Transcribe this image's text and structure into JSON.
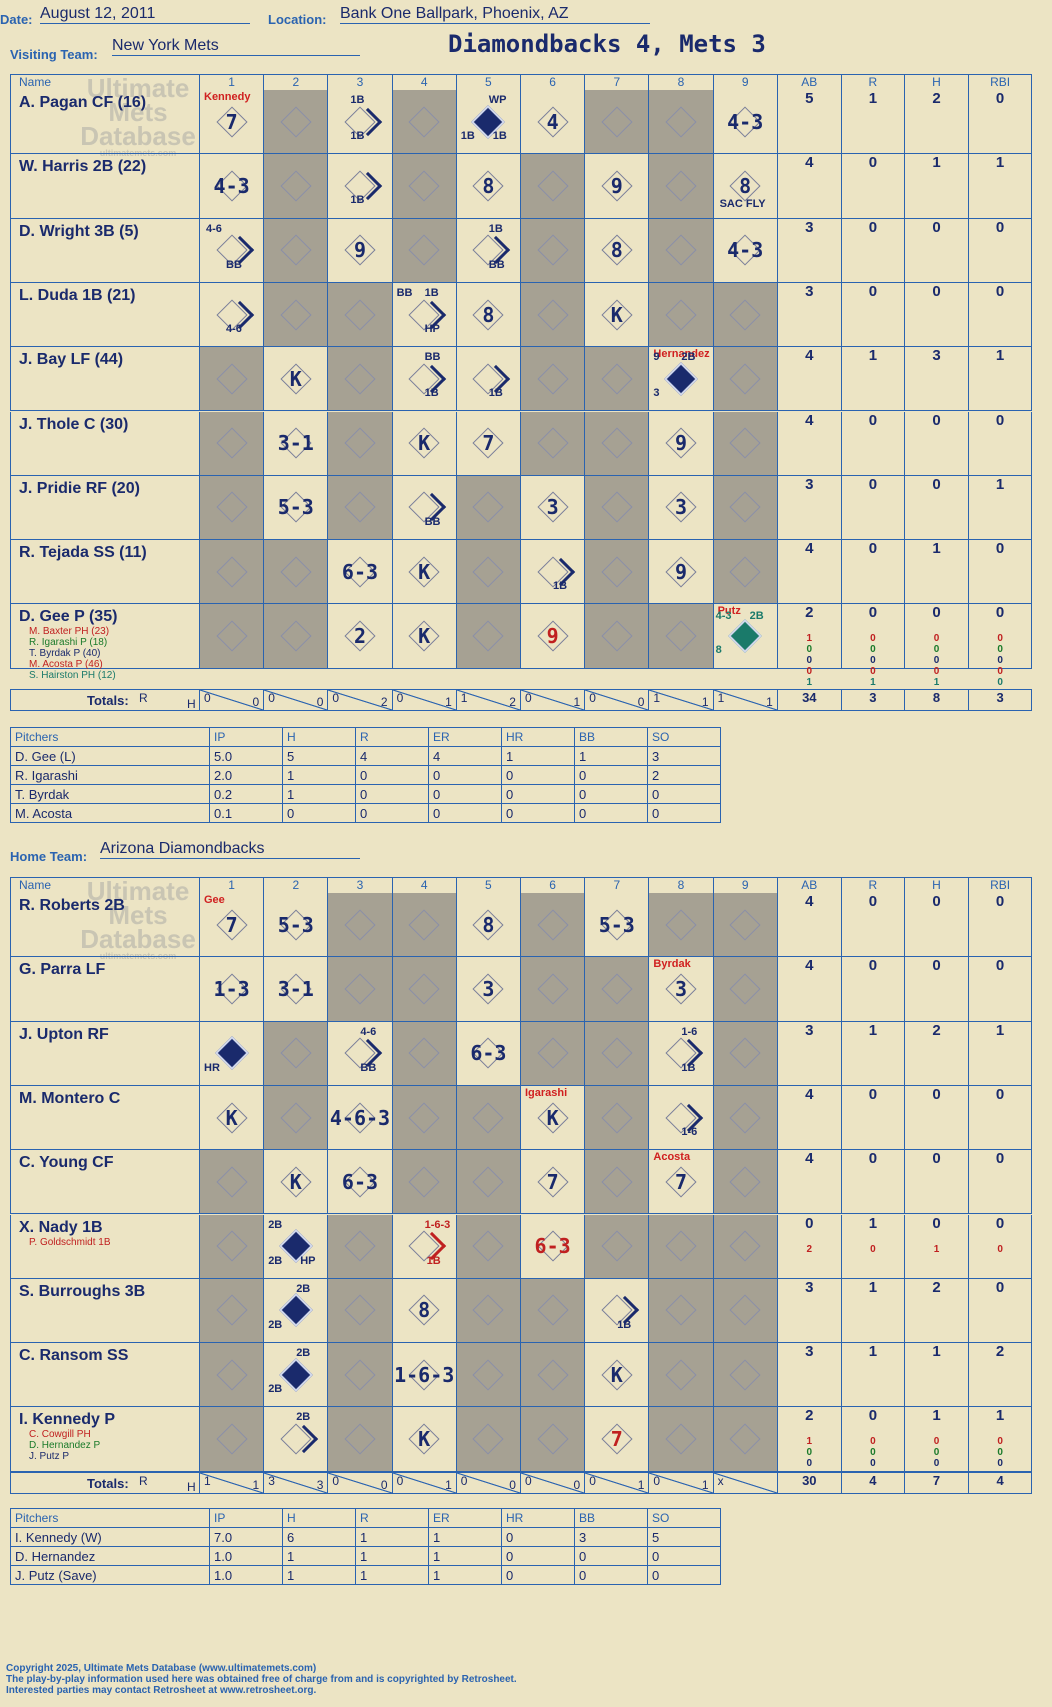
{
  "header": {
    "date_label": "Date:",
    "date": "August 12, 2011",
    "location_label": "Location:",
    "location": "Bank One Ballpark, Phoenix, AZ",
    "title": "Diamondbacks 4, Mets 3"
  },
  "visiting": {
    "team_label": "Visiting Team:",
    "team": "New York Mets",
    "cols": {
      "name": "Name",
      "ab": "AB",
      "r": "R",
      "h": "H",
      "rbi": "RBI",
      "innings": [
        "1",
        "2",
        "3",
        "4",
        "5",
        "6",
        "7",
        "8",
        "9"
      ]
    },
    "rows": [
      {
        "name": "A. Pagan CF (16)",
        "ab": "5",
        "r": "1",
        "h": "2",
        "rbi": "0"
      },
      {
        "name": "W. Harris 2B (22)",
        "ab": "4",
        "r": "0",
        "h": "1",
        "rbi": "1"
      },
      {
        "name": "D. Wright 3B (5)",
        "ab": "3",
        "r": "0",
        "h": "0",
        "rbi": "0"
      },
      {
        "name": "L. Duda 1B (21)",
        "ab": "3",
        "r": "0",
        "h": "0",
        "rbi": "0"
      },
      {
        "name": "J. Bay LF (44)",
        "ab": "4",
        "r": "1",
        "h": "3",
        "rbi": "1"
      },
      {
        "name": "J. Thole C (30)",
        "ab": "4",
        "r": "0",
        "h": "0",
        "rbi": "0"
      },
      {
        "name": "J. Pridie RF (20)",
        "ab": "3",
        "r": "0",
        "h": "0",
        "rbi": "1"
      },
      {
        "name": "R. Tejada SS (11)",
        "ab": "4",
        "r": "0",
        "h": "1",
        "rbi": "0"
      },
      {
        "name": "D. Gee P (35)",
        "ab": "2",
        "r": "0",
        "h": "0",
        "rbi": "0",
        "subs": [
          "M. Baxter PH (23)",
          "R. Igarashi P (18)",
          "T. Byrdak P (40)",
          "M. Acosta P (46)",
          "S. Hairston PH (12)"
        ],
        "sub_ab": [
          "1",
          "0",
          "0",
          "0",
          "1"
        ],
        "sub_r": [
          "0",
          "0",
          "0",
          "0",
          "1"
        ],
        "sub_h": [
          "0",
          "0",
          "0",
          "0",
          "1"
        ],
        "sub_rbi": [
          "0",
          "0",
          "0",
          "0",
          "0"
        ]
      }
    ],
    "totals": {
      "label": "Totals:",
      "r_lbl": "R",
      "h_lbl": "H",
      "innings": [
        [
          "0",
          "0"
        ],
        [
          "0",
          "0"
        ],
        [
          "0",
          "2"
        ],
        [
          "0",
          "1"
        ],
        [
          "1",
          "2"
        ],
        [
          "0",
          "1"
        ],
        [
          "0",
          "0"
        ],
        [
          "1",
          "1"
        ],
        [
          "1",
          "1"
        ]
      ],
      "ab": "34",
      "r": "3",
      "h": "8",
      "rbi": "3"
    },
    "pitchers": {
      "head": [
        "Pitchers",
        "IP",
        "H",
        "R",
        "ER",
        "HR",
        "BB",
        "SO"
      ],
      "rows": [
        [
          "D. Gee (L)",
          "5.0",
          "5",
          "4",
          "4",
          "1",
          "1",
          "3"
        ],
        [
          "R. Igarashi",
          "2.0",
          "1",
          "0",
          "0",
          "0",
          "0",
          "2"
        ],
        [
          "T. Byrdak",
          "0.2",
          "1",
          "0",
          "0",
          "0",
          "0",
          "0"
        ],
        [
          "M. Acosta",
          "0.1",
          "0",
          "0",
          "0",
          "0",
          "0",
          "0"
        ]
      ]
    }
  },
  "home": {
    "team_label": "Home Team:",
    "team": "Arizona Diamondbacks",
    "rows": [
      {
        "name": "R. Roberts 2B",
        "ab": "4",
        "r": "0",
        "h": "0",
        "rbi": "0"
      },
      {
        "name": "G. Parra LF",
        "ab": "4",
        "r": "0",
        "h": "0",
        "rbi": "0"
      },
      {
        "name": "J. Upton RF",
        "ab": "3",
        "r": "1",
        "h": "2",
        "rbi": "1"
      },
      {
        "name": "M. Montero C",
        "ab": "4",
        "r": "0",
        "h": "0",
        "rbi": "0"
      },
      {
        "name": "C. Young CF",
        "ab": "4",
        "r": "0",
        "h": "0",
        "rbi": "0"
      },
      {
        "name": "X. Nady 1B",
        "ab": "0",
        "r": "1",
        "h": "0",
        "rbi": "0",
        "subs": [
          "P. Goldschmidt 1B"
        ],
        "sub_ab": [
          "2"
        ],
        "sub_r": [
          "0"
        ],
        "sub_h": [
          "1"
        ],
        "sub_rbi": [
          "0"
        ]
      },
      {
        "name": "S. Burroughs 3B",
        "ab": "3",
        "r": "1",
        "h": "2",
        "rbi": "0"
      },
      {
        "name": "C. Ransom SS",
        "ab": "3",
        "r": "1",
        "h": "1",
        "rbi": "2"
      },
      {
        "name": "I. Kennedy P",
        "ab": "2",
        "r": "0",
        "h": "1",
        "rbi": "1",
        "subs": [
          "C. Cowgill PH",
          "D. Hernandez P",
          "J. Putz P"
        ],
        "sub_ab": [
          "1",
          "0",
          "0"
        ],
        "sub_r": [
          "0",
          "0",
          "0"
        ],
        "sub_h": [
          "0",
          "0",
          "0"
        ],
        "sub_rbi": [
          "0",
          "0",
          "0"
        ]
      }
    ],
    "totals": {
      "label": "Totals:",
      "r_lbl": "R",
      "h_lbl": "H",
      "innings": [
        [
          "1",
          "1"
        ],
        [
          "3",
          "3"
        ],
        [
          "0",
          "0"
        ],
        [
          "0",
          "1"
        ],
        [
          "0",
          "0"
        ],
        [
          "0",
          "0"
        ],
        [
          "0",
          "1"
        ],
        [
          "0",
          "1"
        ],
        [
          "x",
          ""
        ]
      ],
      "ab": "30",
      "r": "4",
      "h": "7",
      "rbi": "4"
    },
    "pitchers": {
      "head": [
        "Pitchers",
        "IP",
        "H",
        "R",
        "ER",
        "HR",
        "BB",
        "SO"
      ],
      "rows": [
        [
          "I. Kennedy (W)",
          "7.0",
          "6",
          "1",
          "1",
          "0",
          "3",
          "5"
        ],
        [
          "D. Hernandez",
          "1.0",
          "1",
          "1",
          "1",
          "0",
          "0",
          "0"
        ],
        [
          "J. Putz (Save)",
          "1.0",
          "1",
          "1",
          "1",
          "0",
          "0",
          "0"
        ]
      ]
    }
  },
  "watermark": {
    "line1": "Ultimate",
    "line2": "Mets",
    "line3": "Database",
    "url": "ultimatemets.com"
  },
  "footer": {
    "line1": "Copyright 2025, Ultimate Mets Database (www.ultimatemets.com)",
    "line2": "The play-by-play information used here was obtained free of charge from and is copyrighted by Retrosheet.",
    "line3": "Interested parties may contact Retrosheet at www.retrosheet.org."
  }
}
